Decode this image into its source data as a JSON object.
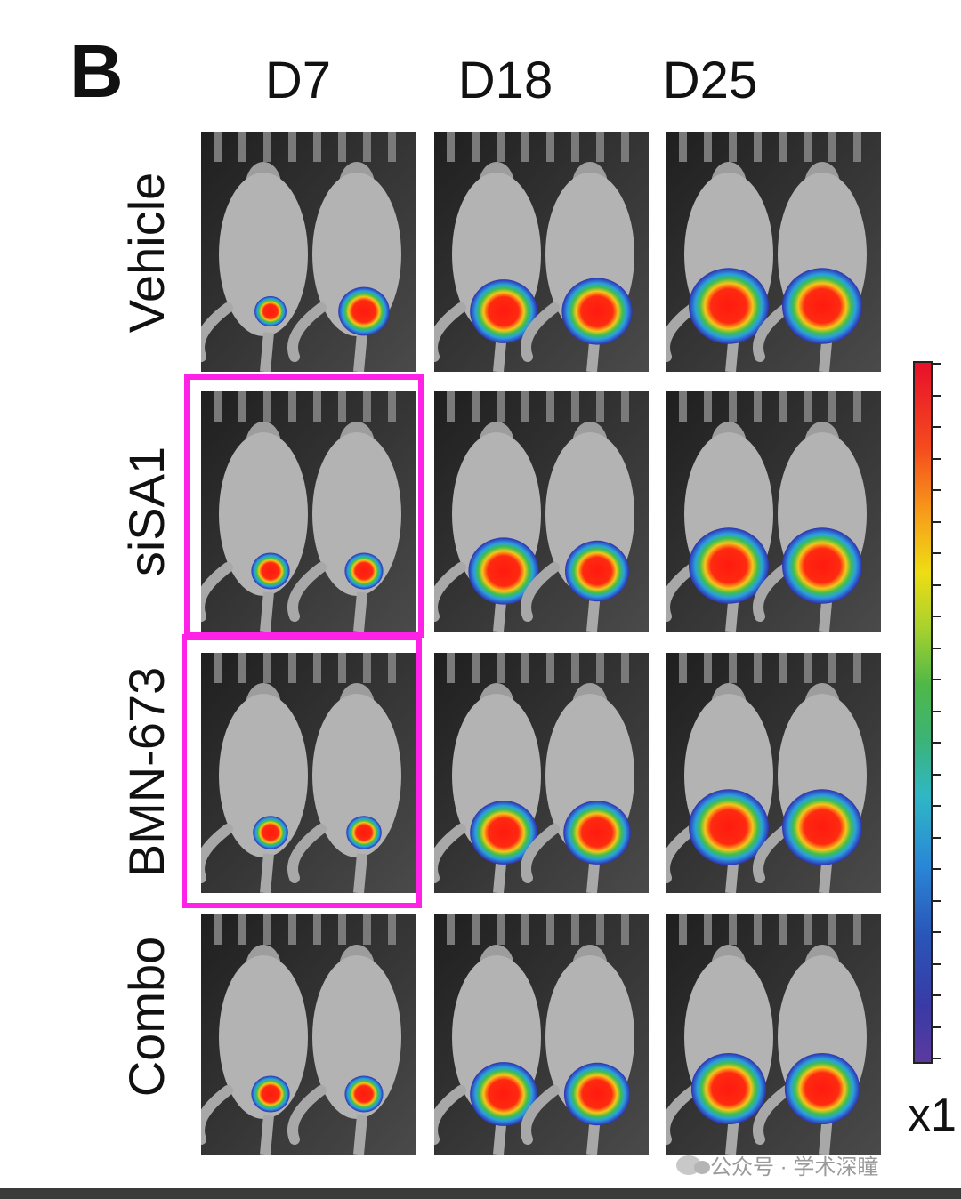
{
  "figure": {
    "panel_letter": "B",
    "columns": [
      "D7",
      "D18",
      "D25"
    ],
    "rows": [
      "Vehicle",
      "siSA1",
      "BMN-673",
      "Combo"
    ],
    "highlight": {
      "color": "#ff22e6",
      "cells": [
        {
          "row": "siSA1",
          "col": "D7"
        },
        {
          "row": "BMN-673",
          "col": "D7"
        }
      ]
    },
    "signal_levels": {
      "Vehicle": {
        "D7": [
          0.25,
          0.55
        ],
        "D18": [
          0.8,
          0.85
        ],
        "D25": [
          1.0,
          1.0
        ]
      },
      "siSA1": {
        "D7": [
          0.35,
          0.35
        ],
        "D18": [
          0.85,
          0.75
        ],
        "D25": [
          1.0,
          1.0
        ]
      },
      "BMN-673": {
        "D7": [
          0.3,
          0.3
        ],
        "D18": [
          0.8,
          0.8
        ],
        "D25": [
          1.0,
          1.0
        ]
      },
      "Combo": {
        "D7": [
          0.35,
          0.35
        ],
        "D18": [
          0.8,
          0.78
        ],
        "D25": [
          0.92,
          0.92
        ]
      }
    }
  },
  "colorbar": {
    "label": "x1",
    "top_color": "#e8102a",
    "bottom_color": "#5a3aa0"
  },
  "watermark": {
    "text": "公众号 · 学术深瞳"
  }
}
